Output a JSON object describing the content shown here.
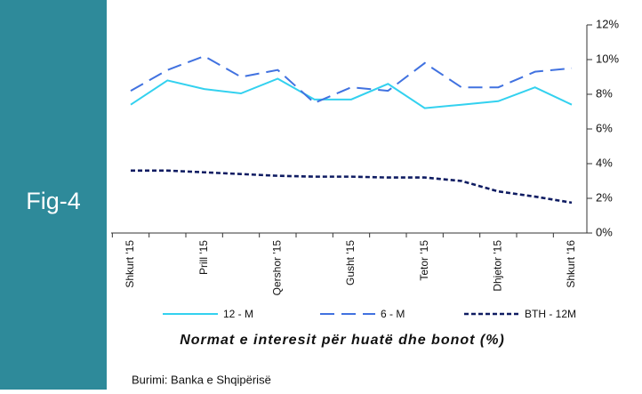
{
  "panel": {
    "label": "Fig-4"
  },
  "source": "Burimi: Banka e Shqipërisë",
  "chart_data": {
    "type": "line",
    "title": "Normat e interesit për huatë dhe bonot (%)",
    "categories": [
      "Shkurt '15",
      null,
      "Prill '15",
      null,
      "Qershor '15",
      null,
      "Gusht '15",
      null,
      "Tetor '15",
      null,
      "Dhjetor '15",
      null,
      "Shkurt '16"
    ],
    "series": [
      {
        "name": "12 - M",
        "color": "#33d1ef",
        "dash": "solid",
        "values": [
          7.4,
          8.8,
          8.3,
          8.05,
          8.9,
          7.7,
          7.7,
          8.6,
          7.2,
          7.4,
          7.6,
          8.4,
          7.4
        ]
      },
      {
        "name": "6 - M",
        "color": "#4172e0",
        "dash": "long",
        "values": [
          8.2,
          9.4,
          10.2,
          9.0,
          9.4,
          7.5,
          8.4,
          8.2,
          9.8,
          8.4,
          8.4,
          9.3,
          9.5
        ]
      },
      {
        "name": "BTH - 12M",
        "color": "#0f1c62",
        "dash": "short",
        "values": [
          3.6,
          3.6,
          3.5,
          3.4,
          3.3,
          3.25,
          3.25,
          3.2,
          3.2,
          3.0,
          2.4,
          2.1,
          1.75
        ]
      }
    ],
    "ylim": [
      0,
      12
    ],
    "yticks": [
      {
        "value": 0,
        "label": "0%"
      },
      {
        "value": 2,
        "label": "2%"
      },
      {
        "value": 4,
        "label": "4%"
      },
      {
        "value": 6,
        "label": "6%"
      },
      {
        "value": 8,
        "label": "8%"
      },
      {
        "value": 10,
        "label": "10%"
      },
      {
        "value": 12,
        "label": "12%"
      }
    ],
    "yaxis_side": "right",
    "grid": false
  }
}
